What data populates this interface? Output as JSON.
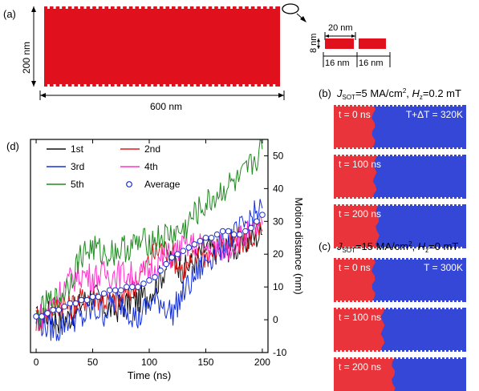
{
  "panels": {
    "a": {
      "label": "(a)",
      "width_label": "600 nm",
      "height_label": "200 nm",
      "notch_size_label": "20 nm",
      "notch_height_label": "8 nm",
      "notch_pitch_label_1": "16 nm",
      "notch_pitch_label_2": "16 nm",
      "strip_color": "#e0101c"
    },
    "b": {
      "label": "(b)",
      "j_symbol": "J",
      "j_subscript": "SOT",
      "j_value": "=5 MA/cm",
      "j_power": "2",
      "h_sep": ", ",
      "h_symbol": "H",
      "h_subscript": "z",
      "h_value": "=0.2 mT",
      "temperature": "T+ΔT = 320K",
      "snapshots": [
        {
          "time": "t = 0 ns",
          "wall_fraction": 0.3
        },
        {
          "time": "t = 100 ns",
          "wall_fraction": 0.31
        },
        {
          "time": "t = 200 ns",
          "wall_fraction": 0.33
        }
      ]
    },
    "c": {
      "label": "(c)",
      "j_symbol": "J",
      "j_subscript": "SOT",
      "j_value": "=15 MA/cm",
      "j_power": "2",
      "h_sep": ", ",
      "h_symbol": "H",
      "h_subscript": "z",
      "h_value": "=0 mT",
      "temperature": "T = 300K",
      "snapshots": [
        {
          "time": "t = 0 ns",
          "wall_fraction": 0.3
        },
        {
          "time": "t = 100 ns",
          "wall_fraction": 0.37
        },
        {
          "time": "t = 200 ns",
          "wall_fraction": 0.45
        }
      ]
    },
    "d": {
      "label": "(d)"
    }
  },
  "colors": {
    "red_domain": "#e8343a",
    "blue_domain": "#3447d6",
    "run1": "#111111",
    "run2": "#e01818",
    "run3": "#1530d8",
    "run4": "#ff33cc",
    "run5": "#1f8a1f",
    "average": "#1a2fd6"
  },
  "chart_data": {
    "type": "line",
    "xlabel": "Time (ns)",
    "ylabel": "Motion distance (nm)",
    "xlim": [
      -5,
      205
    ],
    "ylim": [
      -10,
      55
    ],
    "xticks": [
      0,
      50,
      100,
      150,
      200
    ],
    "yticks": [
      -10,
      0,
      10,
      20,
      30,
      40,
      50
    ],
    "legend": [
      "1st",
      "2nd",
      "3rd",
      "4th",
      "5th",
      "Average"
    ],
    "series": [
      {
        "name": "1st",
        "x": [
          0,
          10,
          20,
          30,
          40,
          50,
          60,
          70,
          80,
          90,
          100,
          110,
          120,
          130,
          140,
          150,
          160,
          170,
          180,
          190,
          200
        ],
        "y": [
          0,
          2,
          0,
          1,
          5,
          8,
          4,
          3,
          5,
          6,
          8,
          13,
          20,
          15,
          18,
          22,
          21,
          22,
          22,
          25,
          26
        ]
      },
      {
        "name": "2nd",
        "x": [
          0,
          10,
          20,
          30,
          40,
          50,
          60,
          70,
          80,
          90,
          100,
          110,
          120,
          130,
          140,
          150,
          160,
          170,
          180,
          190,
          200
        ],
        "y": [
          0,
          2,
          5,
          4,
          6,
          8,
          6,
          5,
          8,
          12,
          18,
          22,
          20,
          15,
          18,
          20,
          21,
          23,
          24,
          25,
          27
        ]
      },
      {
        "name": "3rd",
        "x": [
          0,
          10,
          20,
          30,
          40,
          50,
          60,
          70,
          80,
          90,
          100,
          110,
          120,
          130,
          140,
          150,
          160,
          170,
          180,
          190,
          200
        ],
        "y": [
          0,
          -2,
          -3,
          1,
          0,
          3,
          2,
          6,
          4,
          0,
          5,
          6,
          2,
          8,
          13,
          18,
          21,
          24,
          27,
          31,
          34
        ]
      },
      {
        "name": "4th",
        "x": [
          0,
          10,
          20,
          30,
          40,
          50,
          60,
          70,
          80,
          90,
          100,
          110,
          120,
          130,
          140,
          150,
          160,
          170,
          180,
          190,
          200
        ],
        "y": [
          0,
          3,
          8,
          12,
          14,
          13,
          14,
          14,
          14,
          13,
          15,
          18,
          20,
          22,
          23,
          22,
          22,
          22,
          25,
          26,
          29
        ]
      },
      {
        "name": "5th",
        "x": [
          0,
          10,
          20,
          30,
          40,
          50,
          60,
          70,
          80,
          90,
          100,
          110,
          120,
          130,
          140,
          150,
          160,
          170,
          180,
          190,
          200
        ],
        "y": [
          0,
          5,
          6,
          12,
          20,
          22,
          20,
          21,
          22,
          23,
          24,
          25,
          26,
          27,
          32,
          35,
          38,
          41,
          42,
          47,
          52
        ]
      },
      {
        "name": "Average",
        "x": [
          0,
          5,
          10,
          15,
          20,
          25,
          30,
          35,
          40,
          45,
          50,
          55,
          60,
          65,
          70,
          75,
          80,
          85,
          90,
          95,
          100,
          105,
          110,
          115,
          120,
          125,
          130,
          135,
          140,
          145,
          150,
          155,
          160,
          165,
          170,
          175,
          180,
          185,
          190,
          195,
          200
        ],
        "y": [
          1,
          1,
          2,
          3,
          3,
          4,
          5,
          5,
          6,
          6,
          7,
          7,
          8,
          9,
          9,
          9,
          10,
          10,
          10,
          11,
          12,
          13,
          15,
          17,
          19,
          20,
          21,
          22,
          23,
          24,
          25,
          25,
          26,
          27,
          27,
          26,
          26,
          27,
          28,
          30,
          32
        ]
      }
    ]
  }
}
